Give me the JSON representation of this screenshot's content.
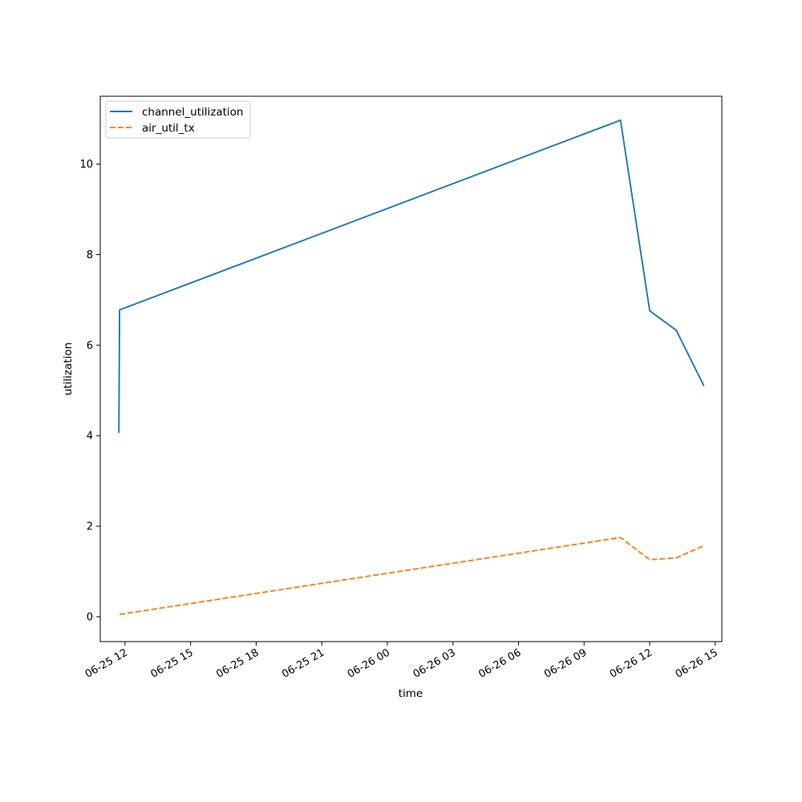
{
  "chart_data": {
    "type": "line",
    "xlabel": "time",
    "ylabel": "utilization",
    "x_axis": {
      "kind": "datetime",
      "range": [
        "2025-06-25T10:52",
        "2025-06-26T15:18"
      ],
      "ticks": [
        {
          "value": "2025-06-25T12:00",
          "label": "06-25 12"
        },
        {
          "value": "2025-06-25T15:00",
          "label": "06-25 15"
        },
        {
          "value": "2025-06-25T18:00",
          "label": "06-25 18"
        },
        {
          "value": "2025-06-25T21:00",
          "label": "06-25 21"
        },
        {
          "value": "2025-06-26T00:00",
          "label": "06-26 00"
        },
        {
          "value": "2025-06-26T03:00",
          "label": "06-26 03"
        },
        {
          "value": "2025-06-26T06:00",
          "label": "06-26 06"
        },
        {
          "value": "2025-06-26T09:00",
          "label": "06-26 09"
        },
        {
          "value": "2025-06-26T12:00",
          "label": "06-26 12"
        },
        {
          "value": "2025-06-26T15:00",
          "label": "06-26 15"
        }
      ]
    },
    "y_axis": {
      "range": [
        -0.55,
        11.5
      ],
      "ticks": [
        0,
        2,
        4,
        6,
        8,
        10
      ]
    },
    "grid": false,
    "legend": {
      "position": "top-left"
    },
    "series": [
      {
        "name": "channel_utilization",
        "color": "#1f77b4",
        "style": "solid",
        "points": [
          {
            "x": "2025-06-25T11:43",
            "y": 4.06
          },
          {
            "x": "2025-06-25T11:45",
            "y": 6.78
          },
          {
            "x": "2025-06-26T10:40",
            "y": 10.97
          },
          {
            "x": "2025-06-26T12:00",
            "y": 6.76
          },
          {
            "x": "2025-06-26T13:13",
            "y": 6.33
          },
          {
            "x": "2025-06-26T14:29",
            "y": 5.1
          }
        ]
      },
      {
        "name": "air_util_tx",
        "color": "#ff7f0e",
        "style": "dashed",
        "points": [
          {
            "x": "2025-06-25T11:45",
            "y": 0.05
          },
          {
            "x": "2025-06-26T10:40",
            "y": 1.75
          },
          {
            "x": "2025-06-26T12:00",
            "y": 1.26
          },
          {
            "x": "2025-06-26T13:13",
            "y": 1.3
          },
          {
            "x": "2025-06-26T14:29",
            "y": 1.57
          }
        ]
      }
    ]
  }
}
